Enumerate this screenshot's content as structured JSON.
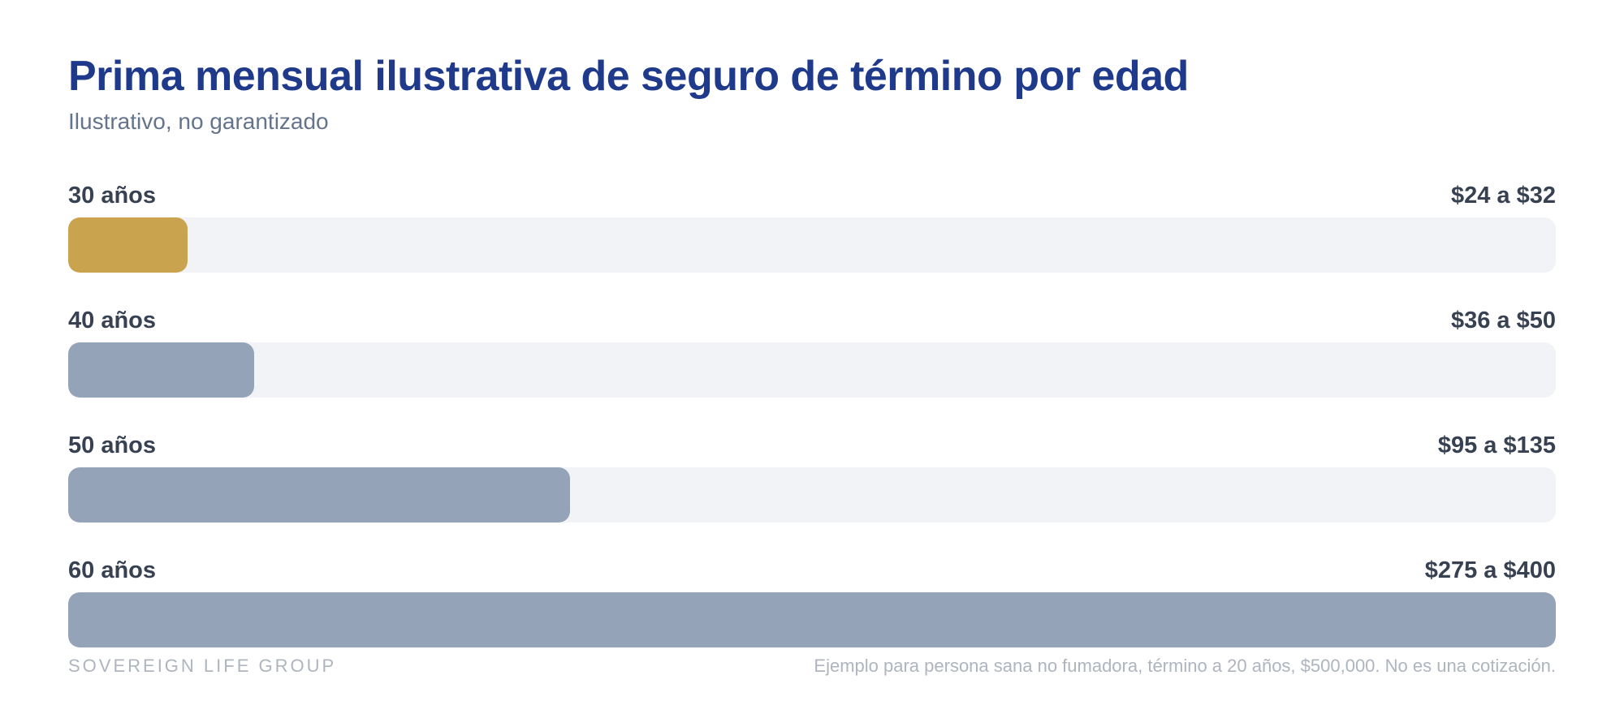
{
  "chart_data": {
    "type": "bar",
    "orientation": "horizontal",
    "title": "Prima mensual ilustrativa de seguro de término por edad",
    "subtitle": "Ilustrativo, no garantizado",
    "categories": [
      "30 años",
      "40 años",
      "50 años",
      "60 años"
    ],
    "range_labels": [
      "$24 a $32",
      "$36 a $50",
      "$95 a $135",
      "$275 a $400"
    ],
    "values": [
      32,
      50,
      135,
      400
    ],
    "xlim": [
      0,
      400
    ],
    "grid": false,
    "colors": {
      "highlight": "#c9a34e",
      "default": "#94a3b8",
      "track": "#f1f3f6"
    },
    "highlight_index": 0
  },
  "footer": {
    "brand": "SOVEREIGN LIFE GROUP",
    "note": "Ejemplo para persona sana no fumadora, término a 20 años, $500,000. No es una cotización."
  }
}
